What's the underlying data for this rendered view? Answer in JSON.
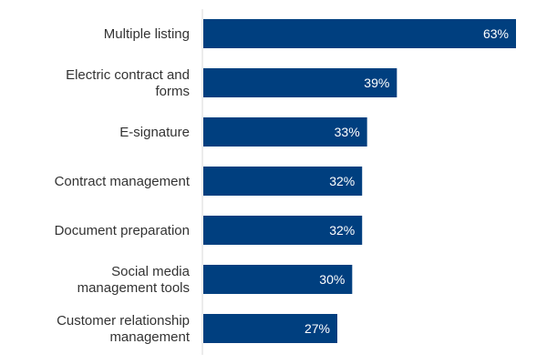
{
  "chart_data": {
    "type": "bar",
    "orientation": "horizontal",
    "title": "",
    "xlabel": "",
    "ylabel": "",
    "xlim": [
      0,
      65
    ],
    "grid": false,
    "legend": "none",
    "bar_color": "#003F7F",
    "axis_color": "#D9D9D9",
    "categories": [
      "Multiple listing",
      "Electric contract and forms",
      "E-signature",
      "Contract management",
      "Document preparation",
      "Social media management tools",
      "Customer relationship management"
    ],
    "category_lines": [
      [
        "Multiple listing"
      ],
      [
        "Electric contract and",
        "forms"
      ],
      [
        "E-signature"
      ],
      [
        "Contract management"
      ],
      [
        "Document preparation"
      ],
      [
        "Social media",
        "management tools"
      ],
      [
        "Customer relationship",
        "management"
      ]
    ],
    "values": [
      63,
      39,
      33,
      32,
      32,
      30,
      27
    ],
    "value_labels": [
      "63%",
      "39%",
      "33%",
      "32%",
      "32%",
      "30%",
      "27%"
    ]
  }
}
